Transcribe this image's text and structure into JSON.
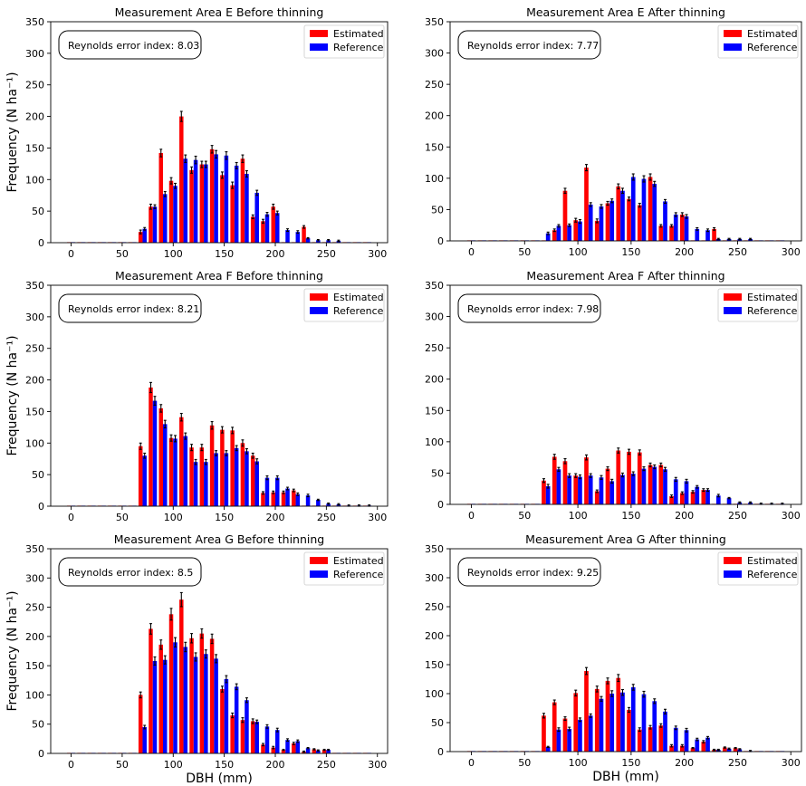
{
  "colors": {
    "estimated": "#ff0000",
    "reference": "#0000ff",
    "error_bar": "#000000"
  },
  "chart_data": [
    {
      "type": "bar",
      "title": "Measurement Area E Before thinning",
      "xlabel": "",
      "ylabel": "Frequency (N ha⁻¹)",
      "annotation": "Reynolds error index: 8.03",
      "legend_position": "top-right",
      "xlim": [
        -20,
        310
      ],
      "ylim": [
        0,
        350
      ],
      "xticks": [
        0,
        50,
        100,
        150,
        200,
        250,
        300
      ],
      "yticks": [
        0,
        50,
        100,
        150,
        200,
        250,
        300,
        350
      ],
      "x": [
        0,
        10,
        20,
        30,
        40,
        50,
        60,
        70,
        80,
        90,
        100,
        110,
        120,
        130,
        140,
        150,
        160,
        170,
        180,
        190,
        200,
        210,
        220,
        230,
        240,
        250,
        260,
        270,
        280,
        290
      ],
      "series": [
        {
          "name": "Estimated",
          "values": [
            0,
            0,
            0,
            0,
            0,
            0,
            0,
            17,
            57,
            142,
            98,
            200,
            115,
            124,
            148,
            107,
            91,
            133,
            41,
            34,
            57,
            0,
            0,
            25,
            0,
            0,
            0,
            0,
            0,
            0
          ],
          "errors": [
            0,
            0,
            0,
            0,
            0,
            0,
            0,
            3,
            4,
            6,
            5,
            8,
            5,
            5,
            6,
            5,
            5,
            6,
            3,
            3,
            4,
            0,
            0,
            2,
            0,
            0,
            0,
            0,
            0,
            0
          ]
        },
        {
          "name": "Reference",
          "values": [
            0,
            0,
            0,
            0,
            0,
            0,
            0,
            22,
            57,
            77,
            90,
            133,
            131,
            124,
            140,
            138,
            122,
            109,
            79,
            45,
            47,
            20,
            17,
            7,
            4,
            4,
            3,
            0,
            0,
            0
          ],
          "errors": [
            0,
            0,
            0,
            0,
            0,
            0,
            0,
            2,
            3,
            4,
            4,
            6,
            6,
            5,
            6,
            6,
            5,
            5,
            4,
            3,
            3,
            2,
            2,
            1,
            1,
            1,
            1,
            0,
            0,
            0
          ]
        }
      ]
    },
    {
      "type": "bar",
      "title": "Measurement Area E After thinning",
      "xlabel": "",
      "ylabel": "",
      "annotation": "Reynolds error index: 7.77",
      "legend_position": "top-right",
      "xlim": [
        -20,
        310
      ],
      "ylim": [
        0,
        350
      ],
      "xticks": [
        0,
        50,
        100,
        150,
        200,
        250,
        300
      ],
      "yticks": [
        0,
        50,
        100,
        150,
        200,
        250,
        300,
        350
      ],
      "x": [
        0,
        10,
        20,
        30,
        40,
        50,
        60,
        70,
        80,
        90,
        100,
        110,
        120,
        130,
        140,
        150,
        160,
        170,
        180,
        190,
        200,
        210,
        220,
        230,
        240,
        250,
        260,
        270,
        280,
        290
      ],
      "series": [
        {
          "name": "Estimated",
          "values": [
            0,
            0,
            0,
            0,
            0,
            0,
            0,
            0,
            17,
            80,
            33,
            117,
            32,
            60,
            87,
            67,
            57,
            102,
            24,
            24,
            42,
            0,
            0,
            19,
            0,
            0,
            0,
            0,
            0,
            0
          ],
          "errors": [
            0,
            0,
            0,
            0,
            0,
            0,
            0,
            0,
            2,
            4,
            3,
            5,
            3,
            3,
            4,
            3,
            3,
            5,
            2,
            2,
            3,
            0,
            0,
            2,
            0,
            0,
            0,
            0,
            0,
            0
          ]
        },
        {
          "name": "Reference",
          "values": [
            0,
            0,
            0,
            0,
            0,
            0,
            0,
            12,
            24,
            25,
            31,
            58,
            55,
            64,
            80,
            102,
            99,
            91,
            63,
            42,
            39,
            19,
            17,
            3,
            3,
            3,
            3,
            0,
            0,
            0
          ],
          "errors": [
            0,
            0,
            0,
            0,
            0,
            0,
            0,
            2,
            2,
            2,
            3,
            3,
            3,
            3,
            4,
            5,
            5,
            4,
            3,
            3,
            3,
            2,
            2,
            1,
            1,
            1,
            1,
            0,
            0,
            0
          ]
        }
      ]
    },
    {
      "type": "bar",
      "title": "Measurement Area F Before thinning",
      "xlabel": "",
      "ylabel": "Frequency (N ha⁻¹)",
      "annotation": "Reynolds error index: 8.21",
      "legend_position": "top-right",
      "xlim": [
        -20,
        310
      ],
      "ylim": [
        0,
        350
      ],
      "xticks": [
        0,
        50,
        100,
        150,
        200,
        250,
        300
      ],
      "yticks": [
        0,
        50,
        100,
        150,
        200,
        250,
        300,
        350
      ],
      "x": [
        0,
        10,
        20,
        30,
        40,
        50,
        60,
        70,
        80,
        90,
        100,
        110,
        120,
        130,
        140,
        150,
        160,
        170,
        180,
        190,
        200,
        210,
        220,
        230,
        240,
        250,
        260,
        270,
        280,
        290
      ],
      "series": [
        {
          "name": "Estimated",
          "values": [
            0,
            0,
            0,
            0,
            0,
            0,
            0,
            95,
            188,
            155,
            108,
            141,
            93,
            93,
            128,
            121,
            120,
            100,
            80,
            21,
            22,
            22,
            25,
            0,
            0,
            0,
            0,
            0,
            0,
            0
          ],
          "errors": [
            0,
            0,
            0,
            0,
            0,
            0,
            0,
            5,
            8,
            6,
            5,
            6,
            5,
            5,
            6,
            5,
            5,
            5,
            4,
            2,
            2,
            2,
            2,
            0,
            0,
            0,
            0,
            0,
            0,
            0
          ]
        },
        {
          "name": "Reference",
          "values": [
            0,
            0,
            0,
            0,
            0,
            0,
            0,
            80,
            167,
            130,
            107,
            111,
            70,
            70,
            84,
            84,
            92,
            87,
            71,
            45,
            45,
            28,
            19,
            17,
            10,
            4,
            3,
            1,
            1,
            1
          ],
          "errors": [
            0,
            0,
            0,
            0,
            0,
            0,
            0,
            4,
            7,
            6,
            5,
            5,
            4,
            4,
            4,
            4,
            4,
            4,
            4,
            3,
            3,
            2,
            2,
            2,
            1,
            1,
            1,
            1,
            1,
            1
          ]
        }
      ]
    },
    {
      "type": "bar",
      "title": "Measurement Area F After thinning",
      "xlabel": "",
      "ylabel": "",
      "annotation": "Reynolds error index: 7.98",
      "legend_position": "top-right",
      "xlim": [
        -20,
        310
      ],
      "ylim": [
        0,
        350
      ],
      "xticks": [
        0,
        50,
        100,
        150,
        200,
        250,
        300
      ],
      "yticks": [
        0,
        50,
        100,
        150,
        200,
        250,
        300,
        350
      ],
      "x": [
        0,
        10,
        20,
        30,
        40,
        50,
        60,
        70,
        80,
        90,
        100,
        110,
        120,
        130,
        140,
        150,
        160,
        170,
        180,
        190,
        200,
        210,
        220,
        230,
        240,
        250,
        260,
        270,
        280,
        290
      ],
      "series": [
        {
          "name": "Estimated",
          "values": [
            0,
            0,
            0,
            0,
            0,
            0,
            0,
            38,
            76,
            69,
            46,
            75,
            21,
            57,
            86,
            84,
            83,
            63,
            63,
            13,
            18,
            20,
            23,
            0,
            0,
            0,
            0,
            0,
            0,
            0
          ],
          "errors": [
            0,
            0,
            0,
            0,
            0,
            0,
            0,
            3,
            4,
            4,
            3,
            4,
            2,
            3,
            4,
            4,
            4,
            3,
            3,
            2,
            2,
            2,
            2,
            0,
            0,
            0,
            0,
            0,
            0,
            0
          ]
        },
        {
          "name": "Reference",
          "values": [
            0,
            0,
            0,
            0,
            0,
            0,
            0,
            29,
            56,
            46,
            44,
            46,
            43,
            37,
            47,
            49,
            57,
            60,
            56,
            40,
            37,
            28,
            23,
            14,
            10,
            3,
            3,
            1,
            1,
            1
          ],
          "errors": [
            0,
            0,
            0,
            0,
            0,
            0,
            0,
            3,
            3,
            3,
            3,
            3,
            3,
            3,
            3,
            3,
            3,
            3,
            3,
            3,
            3,
            2,
            2,
            2,
            1,
            1,
            1,
            1,
            1,
            1
          ]
        }
      ]
    },
    {
      "type": "bar",
      "title": "Measurement Area G Before thinning",
      "xlabel": "DBH (mm)",
      "ylabel": "Frequency (N ha⁻¹)",
      "annotation": "Reynolds error index: 8.5",
      "legend_position": "top-right",
      "xlim": [
        -20,
        310
      ],
      "ylim": [
        0,
        350
      ],
      "xticks": [
        0,
        50,
        100,
        150,
        200,
        250,
        300
      ],
      "yticks": [
        0,
        50,
        100,
        150,
        200,
        250,
        300,
        350
      ],
      "x": [
        0,
        10,
        20,
        30,
        40,
        50,
        60,
        70,
        80,
        90,
        100,
        110,
        120,
        130,
        140,
        150,
        160,
        170,
        180,
        190,
        200,
        210,
        220,
        230,
        240,
        250,
        260,
        270,
        280,
        290
      ],
      "series": [
        {
          "name": "Estimated",
          "values": [
            0,
            0,
            0,
            0,
            0,
            0,
            0,
            100,
            213,
            186,
            238,
            263,
            197,
            205,
            196,
            110,
            65,
            57,
            55,
            15,
            10,
            6,
            17,
            3,
            7,
            6,
            0,
            0,
            0,
            0
          ],
          "errors": [
            0,
            0,
            0,
            0,
            0,
            0,
            0,
            5,
            9,
            8,
            10,
            12,
            8,
            8,
            8,
            5,
            4,
            4,
            4,
            2,
            2,
            1,
            2,
            1,
            1,
            1,
            0,
            0,
            0,
            0
          ]
        },
        {
          "name": "Reference",
          "values": [
            0,
            0,
            0,
            0,
            0,
            0,
            0,
            45,
            158,
            160,
            190,
            182,
            165,
            170,
            162,
            127,
            114,
            91,
            54,
            46,
            40,
            23,
            21,
            9,
            5,
            6,
            0,
            0,
            0,
            0
          ],
          "errors": [
            0,
            0,
            0,
            0,
            0,
            0,
            0,
            3,
            7,
            7,
            8,
            8,
            7,
            7,
            7,
            6,
            5,
            4,
            3,
            3,
            3,
            2,
            2,
            1,
            1,
            1,
            0,
            0,
            0,
            0
          ]
        }
      ]
    },
    {
      "type": "bar",
      "title": "Measurement Area G After thinning",
      "xlabel": "DBH (mm)",
      "ylabel": "",
      "annotation": "Reynolds error index: 9.25",
      "legend_position": "top-right",
      "xlim": [
        -20,
        310
      ],
      "ylim": [
        0,
        350
      ],
      "xticks": [
        0,
        50,
        100,
        150,
        200,
        250,
        300
      ],
      "yticks": [
        0,
        50,
        100,
        150,
        200,
        250,
        300,
        350
      ],
      "x": [
        0,
        10,
        20,
        30,
        40,
        50,
        60,
        70,
        80,
        90,
        100,
        110,
        120,
        130,
        140,
        150,
        160,
        170,
        180,
        190,
        200,
        210,
        220,
        230,
        240,
        250,
        260,
        270,
        280,
        290
      ],
      "series": [
        {
          "name": "Estimated",
          "values": [
            0,
            0,
            0,
            0,
            0,
            0,
            0,
            62,
            85,
            57,
            101,
            139,
            108,
            122,
            127,
            72,
            38,
            42,
            45,
            10,
            10,
            6,
            17,
            3,
            7,
            6,
            0,
            0,
            0,
            0
          ],
          "errors": [
            0,
            0,
            0,
            0,
            0,
            0,
            0,
            4,
            4,
            3,
            5,
            6,
            5,
            5,
            6,
            4,
            3,
            3,
            3,
            2,
            2,
            1,
            2,
            1,
            1,
            1,
            0,
            0,
            0,
            0
          ]
        },
        {
          "name": "Reference",
          "values": [
            0,
            0,
            0,
            0,
            0,
            0,
            0,
            8,
            38,
            39,
            55,
            62,
            91,
            100,
            102,
            111,
            99,
            87,
            69,
            41,
            37,
            21,
            24,
            3,
            5,
            4,
            1,
            0,
            0,
            0
          ],
          "errors": [
            0,
            0,
            0,
            0,
            0,
            0,
            0,
            1,
            3,
            3,
            3,
            3,
            4,
            5,
            5,
            5,
            5,
            4,
            4,
            3,
            3,
            2,
            2,
            1,
            1,
            1,
            1,
            0,
            0,
            0
          ]
        }
      ]
    }
  ]
}
